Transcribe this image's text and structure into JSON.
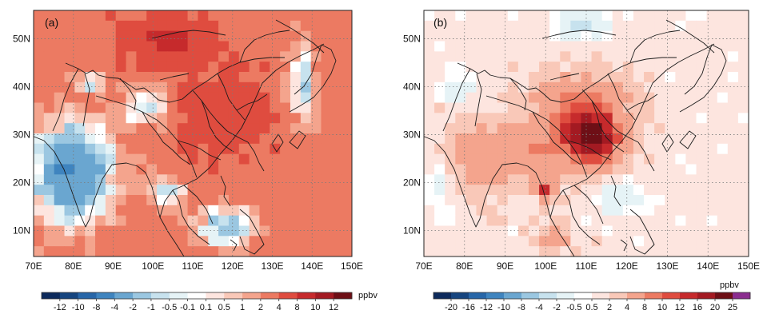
{
  "panels": [
    {
      "label": "(a)",
      "x_ticks": [
        "70E",
        "80E",
        "90E",
        "100E",
        "110E",
        "120E",
        "130E",
        "140E",
        "150E"
      ],
      "y_ticks": [
        "50N",
        "40N",
        "30N",
        "20N",
        "10N"
      ],
      "colorbar": {
        "levels": [
          "-12",
          "-10",
          "-8",
          "-4",
          "-2",
          "-1",
          "-0.5",
          "-0.1",
          "0.1",
          "0.5",
          "1",
          "2",
          "4",
          "8",
          "10",
          "12"
        ],
        "unit": "ppbv",
        "colors": [
          "#0d2a5c",
          "#16457f",
          "#2766a8",
          "#3f84bf",
          "#6aa6d0",
          "#9bc7e1",
          "#c7e2ee",
          "#e6f3f6",
          "#ffffff",
          "#fde5df",
          "#f9c8b8",
          "#f4a48d",
          "#ec7a62",
          "#df4c3f",
          "#c62a2c",
          "#a31a22",
          "#6e0f16"
        ]
      }
    },
    {
      "label": "(b)",
      "x_ticks": [
        "70E",
        "80E",
        "90E",
        "100E",
        "110E",
        "120E",
        "130E",
        "140E",
        "150E"
      ],
      "y_ticks": [
        "50N",
        "40N",
        "30N",
        "20N",
        "10N"
      ],
      "colorbar": {
        "levels": [
          "-20",
          "-16",
          "-12",
          "-10",
          "-8",
          "-4",
          "-2",
          "-0.5",
          "0.5",
          "2",
          "4",
          "8",
          "10",
          "12",
          "16",
          "20",
          "25"
        ],
        "unit": "ppbv",
        "colors": [
          "#0d2a5c",
          "#16457f",
          "#2766a8",
          "#3f84bf",
          "#6aa6d0",
          "#9bc7e1",
          "#c7e2ee",
          "#e6f3f6",
          "#ffffff",
          "#fde5df",
          "#f9c8b8",
          "#f4a48d",
          "#ec7a62",
          "#df4c3f",
          "#c62a2c",
          "#a31a22",
          "#6e0f16",
          "#8b2d8f"
        ]
      }
    }
  ]
}
